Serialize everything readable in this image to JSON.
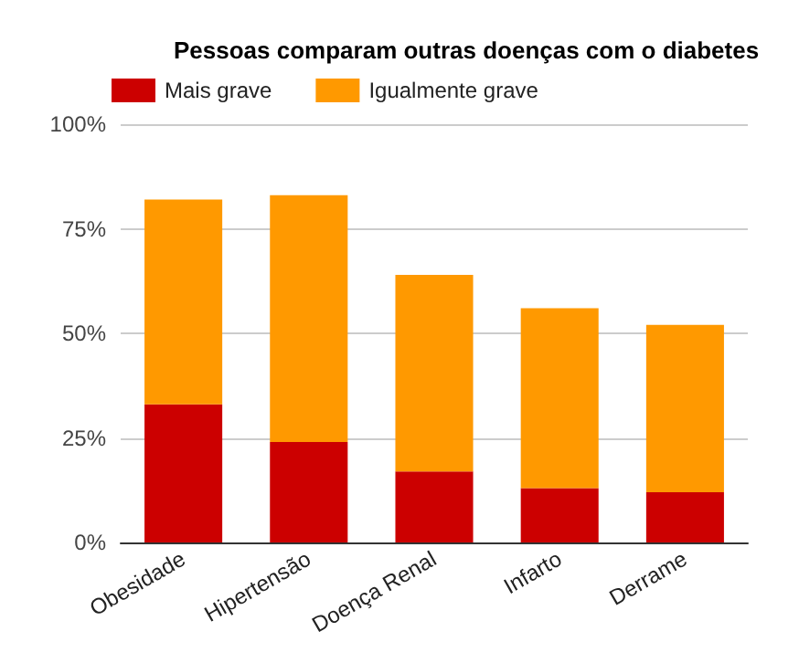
{
  "chart_data": {
    "type": "bar",
    "title": "Pessoas comparam outras doenças com o diabetes",
    "categories": [
      "Obesidade",
      "Hipertensão",
      "Doença Renal",
      "Infarto",
      "Derrame"
    ],
    "stacked": true,
    "series": [
      {
        "name": "Mais grave",
        "color": "#cc0000",
        "values": [
          33,
          24,
          17,
          13,
          12
        ]
      },
      {
        "name": "Igualmente grave",
        "color": "#ff9900",
        "values": [
          49,
          59,
          47,
          43,
          40
        ]
      }
    ],
    "ylim": [
      0,
      100
    ],
    "yticks": [
      {
        "value": 0,
        "label": "0%"
      },
      {
        "value": 25,
        "label": "25%"
      },
      {
        "value": 50,
        "label": "50%"
      },
      {
        "value": 75,
        "label": "75%"
      },
      {
        "value": 100,
        "label": "100%"
      }
    ],
    "grid": "y",
    "legend": "top left"
  }
}
